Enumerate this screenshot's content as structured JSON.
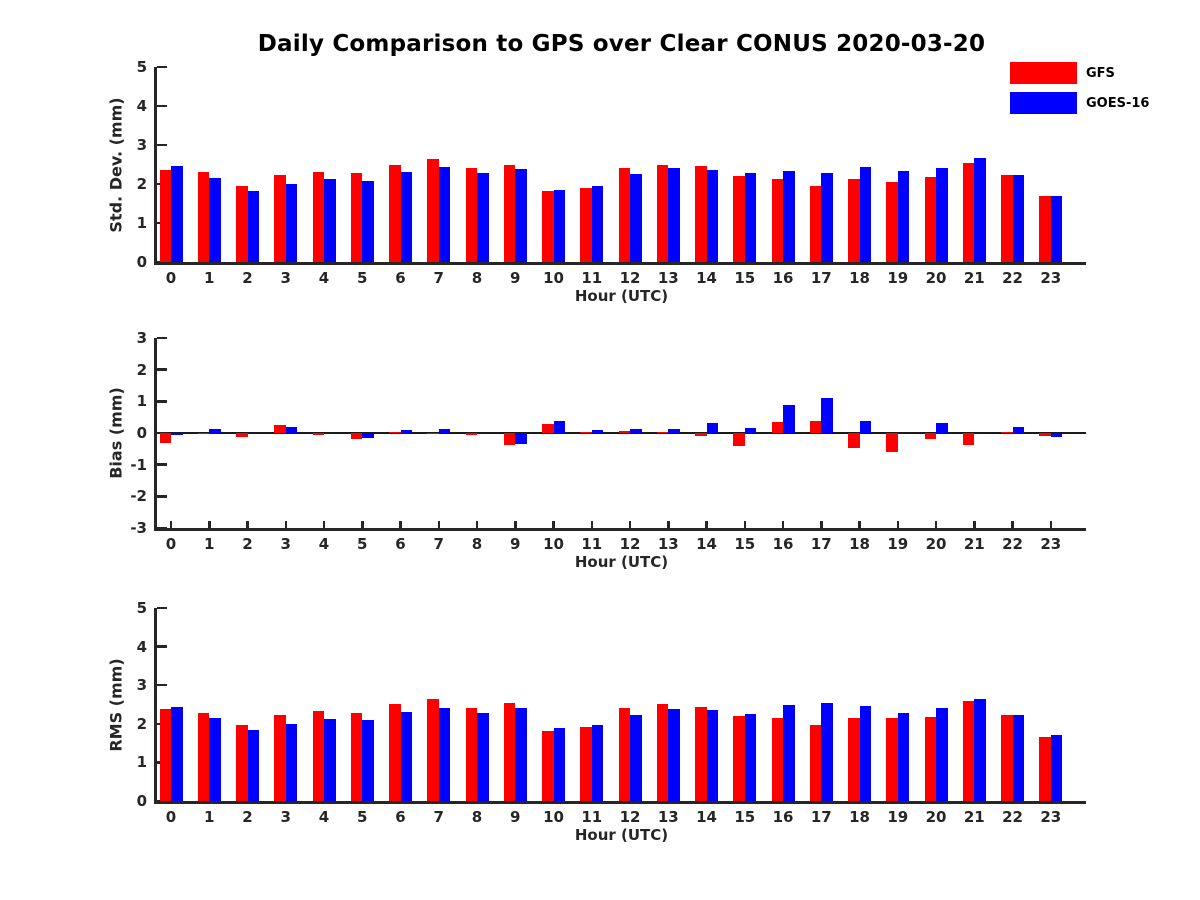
{
  "title": "Daily Comparison to GPS over Clear CONUS 2020-03-20",
  "legend": {
    "position": "top-right",
    "items": [
      {
        "label": "GFS",
        "color": "#ff0000"
      },
      {
        "label": "GOES-16",
        "color": "#0000ff"
      }
    ]
  },
  "colors": {
    "gfs": "#ff0000",
    "goes16": "#0000ff",
    "axis": "#262626",
    "text": "#000000"
  },
  "chart_data": [
    {
      "type": "bar",
      "ylabel": "Std. Dev. (mm)",
      "xlabel": "Hour (UTC)",
      "ylim": [
        0,
        5
      ],
      "yticks": [
        0,
        1,
        2,
        3,
        4,
        5
      ],
      "grid": false,
      "categories": [
        0,
        1,
        2,
        3,
        4,
        5,
        6,
        7,
        8,
        9,
        10,
        11,
        12,
        13,
        14,
        15,
        16,
        17,
        18,
        19,
        20,
        21,
        22,
        23
      ],
      "series": [
        {
          "name": "GFS",
          "color": "#ff0000",
          "values": [
            2.35,
            2.3,
            1.95,
            2.22,
            2.32,
            2.28,
            2.5,
            2.65,
            2.4,
            2.5,
            1.82,
            1.9,
            2.42,
            2.5,
            2.45,
            2.2,
            2.14,
            1.95,
            2.12,
            2.06,
            2.18,
            2.55,
            2.22,
            1.68
          ]
        },
        {
          "name": "GOES-16",
          "color": "#0000ff",
          "values": [
            2.45,
            2.15,
            1.83,
            2.0,
            2.12,
            2.08,
            2.32,
            2.44,
            2.27,
            2.38,
            1.85,
            1.96,
            2.26,
            2.4,
            2.36,
            2.28,
            2.33,
            2.29,
            2.44,
            2.33,
            2.42,
            2.67,
            2.22,
            1.7
          ]
        }
      ]
    },
    {
      "type": "bar",
      "ylabel": "Bias (mm)",
      "xlabel": "Hour (UTC)",
      "ylim": [
        -3,
        3
      ],
      "yticks": [
        -3,
        -2,
        -1,
        0,
        1,
        2,
        3
      ],
      "grid": false,
      "categories": [
        0,
        1,
        2,
        3,
        4,
        5,
        6,
        7,
        8,
        9,
        10,
        11,
        12,
        13,
        14,
        15,
        16,
        17,
        18,
        19,
        20,
        21,
        22,
        23
      ],
      "series": [
        {
          "name": "GFS",
          "color": "#ff0000",
          "values": [
            -0.3,
            -0.03,
            -0.12,
            0.25,
            -0.05,
            -0.18,
            0.02,
            -0.02,
            -0.05,
            -0.38,
            0.28,
            0.04,
            0.05,
            0.03,
            -0.08,
            -0.4,
            0.34,
            0.37,
            -0.47,
            -0.6,
            -0.19,
            -0.38,
            0.03,
            -0.1
          ]
        },
        {
          "name": "GOES-16",
          "color": "#0000ff",
          "values": [
            -0.07,
            0.12,
            -0.02,
            0.2,
            -0.02,
            -0.15,
            0.08,
            0.13,
            -0.02,
            -0.36,
            0.38,
            0.1,
            0.13,
            0.12,
            0.31,
            0.17,
            0.88,
            1.12,
            0.39,
            -0.03,
            0.32,
            -0.03,
            0.2,
            -0.13
          ]
        }
      ]
    },
    {
      "type": "bar",
      "ylabel": "RMS (mm)",
      "xlabel": "Hour (UTC)",
      "ylim": [
        0,
        5
      ],
      "yticks": [
        0,
        1,
        2,
        3,
        4,
        5
      ],
      "grid": false,
      "categories": [
        0,
        1,
        2,
        3,
        4,
        5,
        6,
        7,
        8,
        9,
        10,
        11,
        12,
        13,
        14,
        15,
        16,
        17,
        18,
        19,
        20,
        21,
        22,
        23
      ],
      "series": [
        {
          "name": "GFS",
          "color": "#ff0000",
          "values": [
            2.38,
            2.28,
            1.96,
            2.23,
            2.33,
            2.28,
            2.51,
            2.63,
            2.4,
            2.53,
            1.82,
            1.91,
            2.42,
            2.52,
            2.44,
            2.2,
            2.15,
            1.97,
            2.14,
            2.14,
            2.17,
            2.59,
            2.23,
            1.67
          ]
        },
        {
          "name": "GOES-16",
          "color": "#0000ff",
          "values": [
            2.44,
            2.15,
            1.84,
            2.0,
            2.12,
            2.09,
            2.31,
            2.41,
            2.28,
            2.4,
            1.89,
            1.96,
            2.24,
            2.38,
            2.35,
            2.26,
            2.5,
            2.53,
            2.46,
            2.28,
            2.4,
            2.65,
            2.24,
            1.7
          ]
        }
      ]
    }
  ]
}
